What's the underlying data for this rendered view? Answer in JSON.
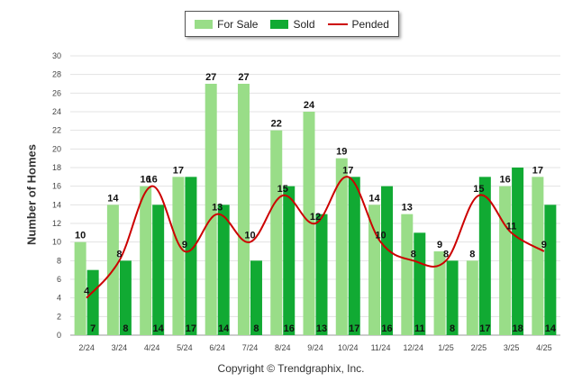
{
  "chart_data": {
    "type": "bar",
    "categories": [
      "2/24",
      "3/24",
      "4/24",
      "5/24",
      "6/24",
      "7/24",
      "8/24",
      "9/24",
      "10/24",
      "11/24",
      "12/24",
      "1/25",
      "2/25",
      "3/25",
      "4/25"
    ],
    "series": [
      {
        "name": "For Sale",
        "kind": "bar",
        "color": "#99dd88",
        "values": [
          10,
          14,
          16,
          17,
          27,
          27,
          22,
          24,
          19,
          14,
          13,
          9,
          8,
          16,
          17
        ]
      },
      {
        "name": "Sold",
        "kind": "bar",
        "color": "#11aa33",
        "values": [
          7,
          8,
          14,
          17,
          14,
          8,
          16,
          13,
          17,
          16,
          11,
          8,
          17,
          18,
          14
        ]
      },
      {
        "name": "Pended",
        "kind": "line",
        "color": "#cc0000",
        "values": [
          4,
          8,
          16,
          9,
          13,
          10,
          15,
          12,
          17,
          10,
          8,
          8,
          15,
          11,
          9
        ]
      }
    ],
    "ylabel": "Number of Homes",
    "ylim": [
      0,
      30
    ],
    "yticks": [
      0,
      2,
      4,
      6,
      8,
      10,
      12,
      14,
      16,
      18,
      20,
      22,
      24,
      26,
      28,
      30
    ],
    "grid": true,
    "legend_position": "top"
  },
  "credit": "Copyright © Trendgraphix, Inc."
}
